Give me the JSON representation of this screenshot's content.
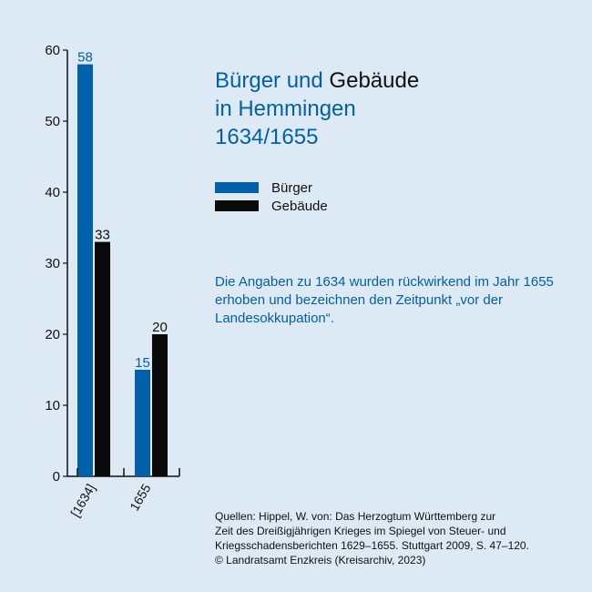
{
  "title": {
    "part1": "Bürger und",
    "part2": "Gebäude",
    "line2": "in Hemmingen",
    "line3": "1634/1655"
  },
  "colors": {
    "buerger": "#0060aa",
    "gebaeude": "#0a0a0a",
    "background": "#dde9f5"
  },
  "note": "Die Angaben zu 1634 wurden rückwirkend im Jahr 1655 erhoben und bezeichnen den Zeitpunkt „vor der Landesokkupation“.",
  "sources": [
    "Quellen: Hippel, W. von: Das Herzogtum Württemberg zur",
    "Zeit des Dreißigjährigen Krieges im Spiegel von Steuer- und",
    "Kriegsschadensberichten 1629–1655. Stuttgart 2009, S. 47–120.",
    "© Landratsamt Enzkreis (Kreisarchiv, 2023)"
  ],
  "chart_data": {
    "type": "bar",
    "title": "Bürger und Gebäude in Hemmingen 1634/1655",
    "categories": [
      "[1634]",
      "1655"
    ],
    "series": [
      {
        "name": "Bürger",
        "values": [
          58,
          15
        ],
        "color": "#0060aa",
        "label_color": "#0060aa"
      },
      {
        "name": "Gebäude",
        "values": [
          33,
          20
        ],
        "color": "#0a0a0a",
        "label_color": "#111111"
      }
    ],
    "ylim": [
      0,
      60
    ],
    "yticks": [
      0,
      10,
      20,
      30,
      40,
      50,
      60
    ],
    "grid": false,
    "legend": "right"
  }
}
